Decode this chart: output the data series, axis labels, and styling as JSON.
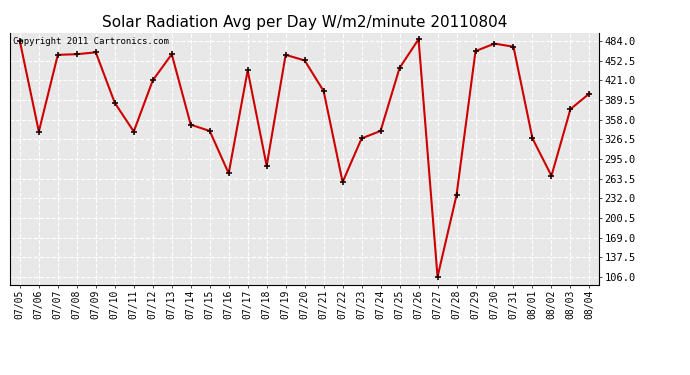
{
  "title": "Solar Radiation Avg per Day W/m2/minute 20110804",
  "copyright": "Copyright 2011 Cartronics.com",
  "dates": [
    "07/05",
    "07/06",
    "07/07",
    "07/08",
    "07/09",
    "07/10",
    "07/11",
    "07/12",
    "07/13",
    "07/14",
    "07/15",
    "07/16",
    "07/17",
    "07/18",
    "07/19",
    "07/20",
    "07/21",
    "07/22",
    "07/23",
    "07/24",
    "07/25",
    "07/26",
    "07/27",
    "07/28",
    "07/29",
    "07/30",
    "07/31",
    "08/01",
    "08/02",
    "08/03",
    "08/04"
  ],
  "values": [
    484.0,
    339.0,
    462.0,
    463.0,
    466.0,
    385.0,
    339.0,
    421.0,
    463.0,
    350.0,
    340.0,
    272.0,
    437.0,
    284.0,
    462.0,
    453.0,
    404.0,
    258.0,
    328.0,
    340.0,
    441.0,
    487.0,
    106.0,
    237.0,
    468.0,
    480.0,
    475.0,
    328.0,
    268.0,
    375.0,
    400.0
  ],
  "line_color": "#cc0000",
  "background_color": "#ffffff",
  "plot_bg_color": "#e8e8e8",
  "grid_color": "#ffffff",
  "yticks": [
    106.0,
    137.5,
    169.0,
    200.5,
    232.0,
    263.5,
    295.0,
    326.5,
    358.0,
    389.5,
    421.0,
    452.5,
    484.0
  ],
  "ylim_min": 93.0,
  "ylim_max": 497.0,
  "title_fontsize": 11,
  "copyright_fontsize": 6.5,
  "tick_fontsize": 7,
  "ytick_fontsize": 7.5
}
